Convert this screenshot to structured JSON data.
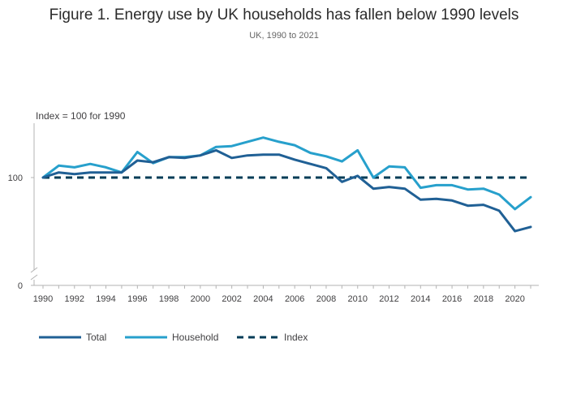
{
  "title": "Figure 1. Energy use by UK households has fallen below 1990 levels",
  "subtitle": "UK, 1990 to 2021",
  "chart_data": {
    "type": "line",
    "title": "Figure 1. Energy use by UK households has fallen below 1990 levels",
    "subtitle": "UK, 1990 to 2021",
    "ylabel": "Index = 100 for 1990",
    "xlabel": "",
    "x": [
      1990,
      1991,
      1992,
      1993,
      1994,
      1995,
      1996,
      1997,
      1998,
      1999,
      2000,
      2001,
      2002,
      2003,
      2004,
      2005,
      2006,
      2007,
      2008,
      2009,
      2010,
      2011,
      2012,
      2013,
      2014,
      2015,
      2016,
      2017,
      2018,
      2019,
      2020,
      2021
    ],
    "x_ticks": [
      1990,
      1992,
      1994,
      1996,
      1998,
      2000,
      2002,
      2004,
      2006,
      2008,
      2010,
      2012,
      2014,
      2016,
      2018,
      2020
    ],
    "y_ticks": [
      0,
      100
    ],
    "y_axis_break": true,
    "grid": false,
    "legend_position": "bottom-left",
    "series": [
      {
        "name": "Total",
        "color": "#206095",
        "dash": "solid",
        "values": [
          100,
          106,
          104,
          106,
          106,
          106,
          120,
          118,
          124,
          123,
          126,
          132,
          123,
          126,
          127,
          127,
          121,
          116,
          111,
          95,
          102,
          87,
          89,
          87,
          74,
          75,
          73,
          67,
          68,
          61,
          37,
          42
        ]
      },
      {
        "name": "Household",
        "color": "#27a0cc",
        "dash": "solid",
        "values": [
          100,
          114,
          112,
          116,
          112,
          106,
          130,
          117,
          124,
          124,
          126,
          136,
          137,
          142,
          147,
          142,
          138,
          129,
          125,
          119,
          132,
          100,
          113,
          112,
          88,
          91,
          91,
          86,
          87,
          80,
          63,
          77
        ]
      },
      {
        "name": "Index",
        "color": "#003c57",
        "dash": "dashed",
        "values": [
          100,
          100,
          100,
          100,
          100,
          100,
          100,
          100,
          100,
          100,
          100,
          100,
          100,
          100,
          100,
          100,
          100,
          100,
          100,
          100,
          100,
          100,
          100,
          100,
          100,
          100,
          100,
          100,
          100,
          100,
          100,
          100
        ]
      }
    ]
  }
}
